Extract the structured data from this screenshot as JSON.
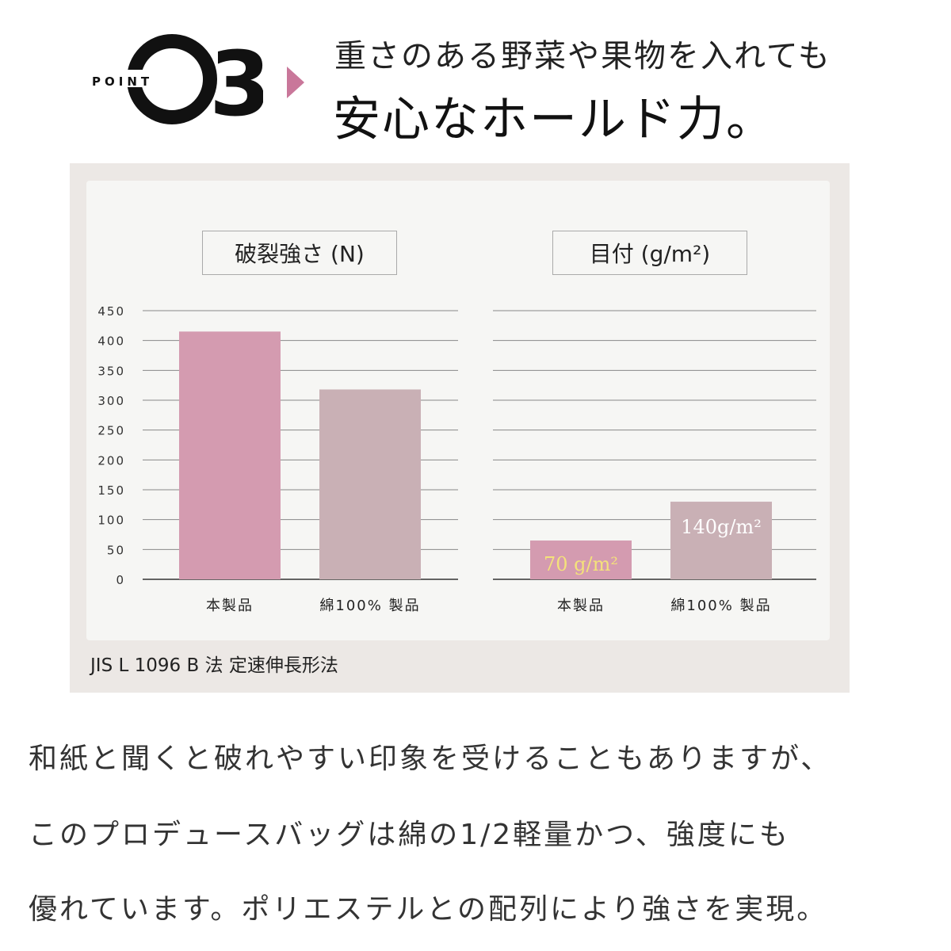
{
  "header": {
    "point_label": "POINT",
    "point_number": "03",
    "subtitle": "重さのある野菜や果物を入れても",
    "title": "安心なホールド力。"
  },
  "colors": {
    "accent": "#c9779a",
    "bar_product": "#d49bb0",
    "bar_cotton": "#c9b0b5",
    "label_highlight": "#f4e27a"
  },
  "chart_data": [
    {
      "type": "bar",
      "title": "破裂強さ (N)",
      "categories": [
        "本製品",
        "綿100% 製品"
      ],
      "values": [
        415,
        318
      ],
      "ylim": [
        0,
        450
      ],
      "yticks": [
        "0",
        "50",
        "100",
        "150",
        "200",
        "250",
        "300",
        "350",
        "400",
        "450"
      ],
      "grid": true
    },
    {
      "type": "bar",
      "title": "目付 (g/m²)",
      "categories": [
        "本製品",
        "綿100% 製品"
      ],
      "values": [
        70,
        140
      ],
      "data_labels": [
        "70 g/m²",
        "140g/m²"
      ],
      "grid": true
    }
  ],
  "footnote": "JIS L 1096 B 法 定速伸長形法",
  "body_text": [
    "和紙と聞くと破れやすい印象を受けることもありますが、",
    "このプロデュースバッグは綿の1/2軽量かつ、強度にも",
    "優れています。ポリエステルとの配列により強さを実現。"
  ]
}
